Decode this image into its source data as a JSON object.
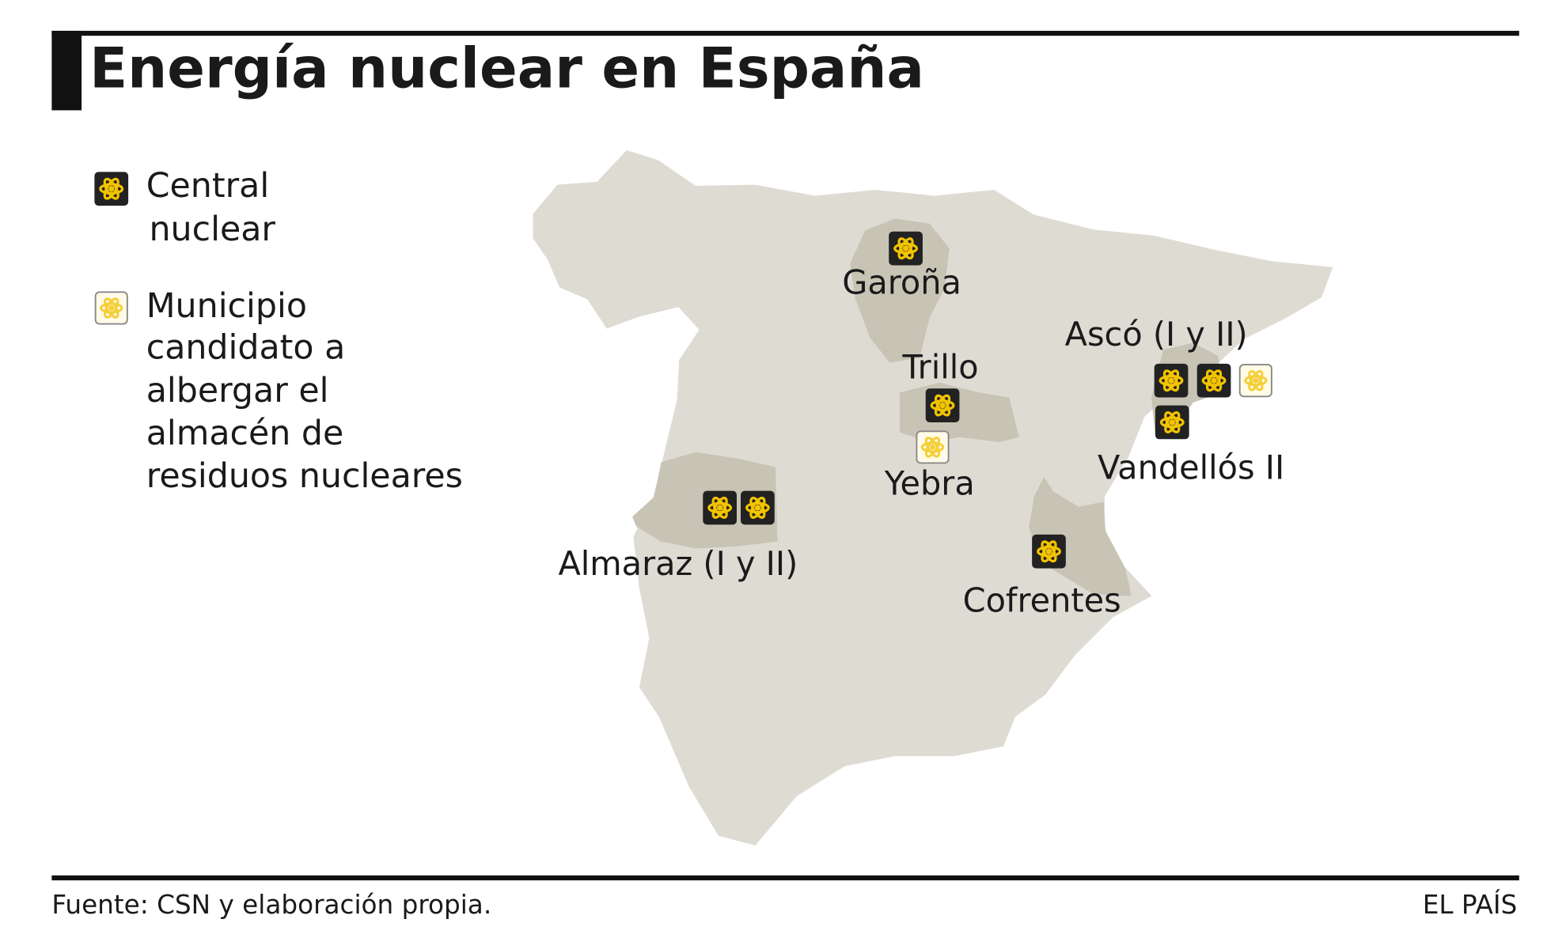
{
  "header": {
    "title": "Energía nuclear en España"
  },
  "legend": [
    {
      "lines": [
        "Central",
        "nuclear"
      ]
    },
    {
      "lines": [
        "Municipio",
        "candidato a",
        "albergar el",
        "almacén de",
        "residuos nucleares"
      ]
    }
  ],
  "places": [
    {
      "label": "Garoña"
    },
    {
      "label": "Trillo"
    },
    {
      "label": "Yebra"
    },
    {
      "label": "Almaraz (I y II)"
    },
    {
      "label": "Ascó (I y II)"
    },
    {
      "label": "Vandellós II"
    },
    {
      "label": "Cofrentes"
    }
  ],
  "footer": {
    "source": "Fuente: CSN y elaboración propia.",
    "brand": "EL PAÍS"
  }
}
